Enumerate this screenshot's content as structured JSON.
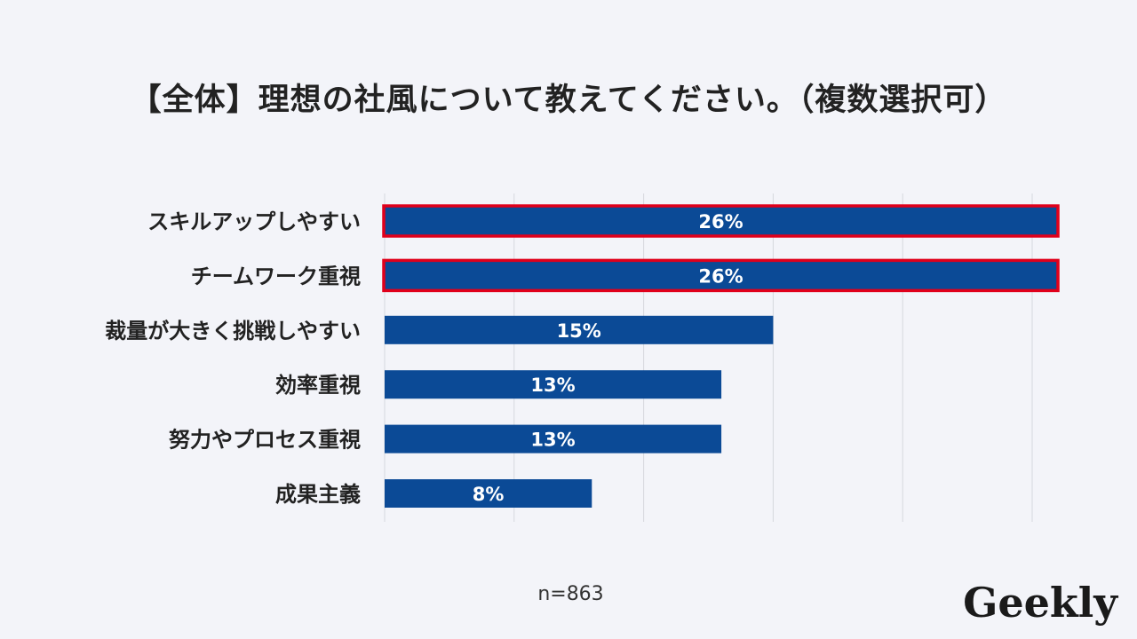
{
  "title": "【全体】理想の社風について教えてください。（複数選択可）",
  "note": "n=863",
  "logo_text": "Geekly",
  "colors": {
    "bar": "#0b4a96",
    "highlight_border": "#e0001b",
    "grid": "#d6d8de",
    "background": "#f3f4f9"
  },
  "chart_data": {
    "type": "bar",
    "orientation": "horizontal",
    "categories": [
      "スキルアップしやすい",
      "チームワーク重視",
      "裁量が大きく挑戦しやすい",
      "効率重視",
      "努力やプロセス重視",
      "成果主義"
    ],
    "values": [
      26,
      26,
      15,
      13,
      13,
      8
    ],
    "data_labels": [
      "26%",
      "26%",
      "15%",
      "13%",
      "13%",
      "8%"
    ],
    "highlighted": [
      true,
      true,
      false,
      false,
      false,
      false
    ],
    "xlim": [
      0,
      25
    ],
    "grid": true,
    "legend": "none"
  }
}
